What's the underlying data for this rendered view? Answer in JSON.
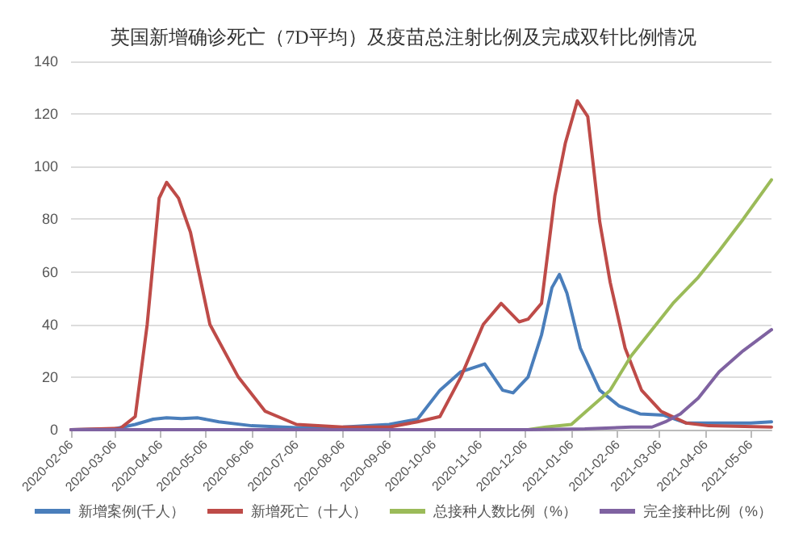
{
  "chart_data": {
    "type": "line",
    "title": "英国新增确诊死亡（7D平均）及疫苗总注射比例及完成双针比例情况",
    "xlim": [
      "2020-02-06",
      "2021-05-20"
    ],
    "xticks": [
      "2020-02-06",
      "2020-03-06",
      "2020-04-06",
      "2020-05-06",
      "2020-06-06",
      "2020-07-06",
      "2020-08-06",
      "2020-09-06",
      "2020-10-06",
      "2020-11-06",
      "2020-12-06",
      "2021-01-06",
      "2021-02-06",
      "2021-03-06",
      "2021-04-06",
      "2021-05-06"
    ],
    "ylim": [
      0,
      140
    ],
    "yticks": [
      0,
      20,
      40,
      60,
      80,
      100,
      120,
      140
    ],
    "grid": "y",
    "legend": "bottom",
    "marker": "none",
    "line_style": "solid",
    "series": [
      {
        "name": "新增案例(千人）",
        "color": "#4a7ebb",
        "x": [
          "2020-02-06",
          "2020-03-06",
          "2020-03-20",
          "2020-04-01",
          "2020-04-10",
          "2020-04-20",
          "2020-05-01",
          "2020-05-15",
          "2020-06-06",
          "2020-07-06",
          "2020-08-06",
          "2020-09-06",
          "2020-09-25",
          "2020-10-10",
          "2020-10-24",
          "2020-11-09",
          "2020-11-21",
          "2020-11-28",
          "2020-12-08",
          "2020-12-17",
          "2020-12-24",
          "2020-12-29",
          "2021-01-03",
          "2021-01-12",
          "2021-01-25",
          "2021-02-07",
          "2021-02-21",
          "2021-03-09",
          "2021-03-24",
          "2021-04-15",
          "2021-05-06",
          "2021-05-20"
        ],
        "values": [
          0,
          0.3,
          2,
          4,
          4.5,
          4.2,
          4.5,
          3,
          1.5,
          0.8,
          1,
          2,
          4,
          15,
          22,
          25,
          15,
          14,
          20,
          36,
          54,
          59,
          52,
          31,
          15,
          9,
          6,
          5.5,
          2.5,
          2.5,
          2.5,
          3
        ]
      },
      {
        "name": "新增死亡（十人）",
        "color": "#be4b48",
        "x": [
          "2020-02-06",
          "2020-03-10",
          "2020-03-20",
          "2020-03-28",
          "2020-04-05",
          "2020-04-10",
          "2020-04-18",
          "2020-04-26",
          "2020-05-09",
          "2020-05-28",
          "2020-06-15",
          "2020-07-06",
          "2020-08-06",
          "2020-09-06",
          "2020-09-25",
          "2020-10-10",
          "2020-10-24",
          "2020-11-08",
          "2020-11-20",
          "2020-12-02",
          "2020-12-08",
          "2020-12-17",
          "2020-12-26",
          "2021-01-02",
          "2021-01-10",
          "2021-01-17",
          "2021-01-25",
          "2021-02-01",
          "2021-02-11",
          "2021-02-22",
          "2021-03-07",
          "2021-03-24",
          "2021-04-08",
          "2021-05-20"
        ],
        "values": [
          0,
          0.5,
          5,
          40,
          88,
          94,
          88,
          75,
          40,
          20,
          7,
          2,
          1,
          1,
          3,
          5,
          20,
          40,
          48,
          41,
          42,
          48,
          89,
          109,
          125,
          119,
          79,
          56,
          31,
          15,
          7,
          2.5,
          1.5,
          1
        ]
      },
      {
        "name": "总接种人数比例（%）",
        "color": "#9bbb59",
        "x": [
          "2020-12-08",
          "2020-12-20",
          "2021-01-06",
          "2021-02-01",
          "2021-02-15",
          "2021-03-01",
          "2021-03-15",
          "2021-04-01",
          "2021-04-15",
          "2021-05-01",
          "2021-05-20"
        ],
        "values": [
          0,
          1,
          2,
          15,
          28,
          38,
          48,
          58,
          68,
          80,
          95
        ]
      },
      {
        "name": "完全接种比例（%）",
        "color": "#7f62a1",
        "x": [
          "2020-02-06",
          "2020-12-08",
          "2021-01-15",
          "2021-02-15",
          "2021-03-01",
          "2021-03-10",
          "2021-03-20",
          "2021-04-01",
          "2021-04-15",
          "2021-05-01",
          "2021-05-20"
        ],
        "values": [
          0,
          0,
          0.3,
          1,
          1,
          3,
          6,
          12,
          22,
          30,
          38
        ]
      }
    ]
  }
}
